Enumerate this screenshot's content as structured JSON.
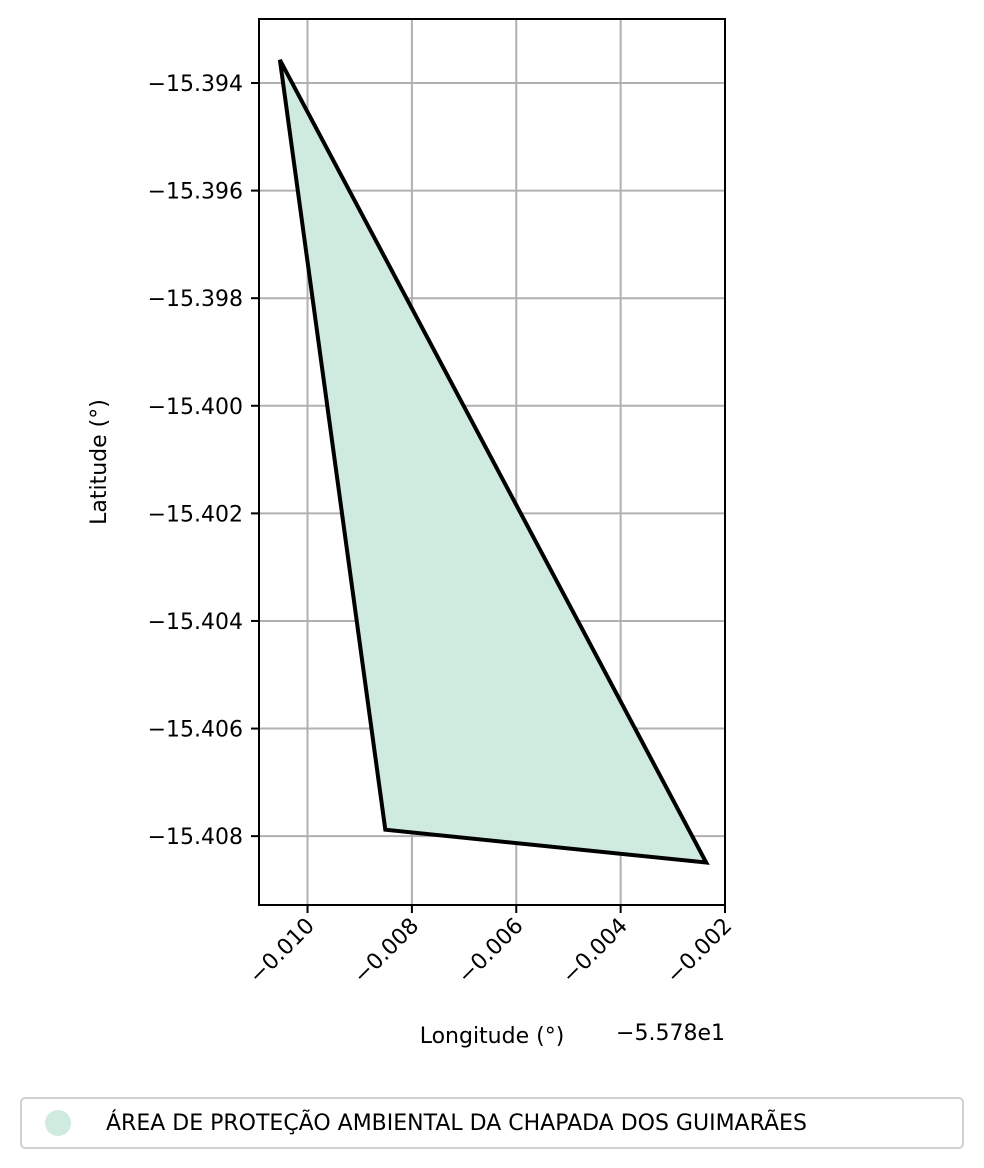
{
  "chart_data": {
    "type": "map",
    "xlabel": "Longitude (°)",
    "ylabel": "Latitude (°)",
    "x_offset_label": "−5.578e1",
    "x_ticks": [
      -0.01,
      -0.008,
      -0.006,
      -0.004,
      -0.002
    ],
    "x_tick_labels": [
      "−0.010",
      "−0.008",
      "−0.006",
      "−0.004",
      "−0.002"
    ],
    "y_ticks": [
      -15.394,
      -15.396,
      -15.398,
      -15.4,
      -15.402,
      -15.404,
      -15.406,
      -15.408
    ],
    "y_tick_labels": [
      "−15.394",
      "−15.396",
      "−15.398",
      "−15.400",
      "−15.402",
      "−15.404",
      "−15.406",
      "−15.408"
    ],
    "xlim": [
      -0.01093,
      -0.002
    ],
    "ylim": [
      -15.40928,
      -15.39281
    ],
    "grid": true,
    "polygon": {
      "name": "ÁREA DE PROTEÇÃO AMBIENTAL DA CHAPADA DOS GUIMARÃES",
      "fill": "#cfeadf",
      "edge": "#000000",
      "vertices": [
        {
          "x": -0.01053,
          "y": -15.39357
        },
        {
          "x": -0.00236,
          "y": -15.40849
        },
        {
          "x": -0.00851,
          "y": -15.40788
        }
      ]
    },
    "legend": {
      "placement": "bottom-center",
      "entries": [
        {
          "label": "ÁREA DE PROTEÇÃO AMBIENTAL DA CHAPADA DOS GUIMARÃES",
          "color": "#cfeadf"
        }
      ]
    }
  }
}
